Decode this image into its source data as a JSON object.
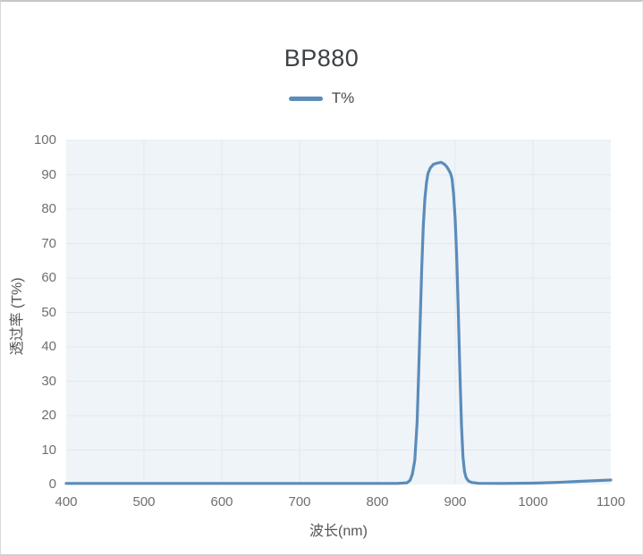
{
  "chart_data": {
    "type": "line",
    "title": "BP880",
    "xlabel": "波长(nm)",
    "ylabel": "透过率 (T%)",
    "xlim": [
      400,
      1100
    ],
    "ylim": [
      0,
      100
    ],
    "x_ticks": [
      400,
      500,
      600,
      700,
      800,
      900,
      1000,
      1100
    ],
    "y_ticks": [
      0,
      10,
      20,
      30,
      40,
      50,
      60,
      70,
      80,
      90,
      100
    ],
    "grid": true,
    "legend_position": "top-center",
    "series": [
      {
        "name": "T%",
        "color": "#5b8cba",
        "points": [
          [
            400,
            0.3
          ],
          [
            450,
            0.3
          ],
          [
            500,
            0.3
          ],
          [
            550,
            0.3
          ],
          [
            600,
            0.3
          ],
          [
            650,
            0.3
          ],
          [
            700,
            0.3
          ],
          [
            750,
            0.3
          ],
          [
            800,
            0.3
          ],
          [
            825,
            0.3
          ],
          [
            838,
            0.5
          ],
          [
            842,
            1.2
          ],
          [
            845,
            3
          ],
          [
            848,
            7
          ],
          [
            851,
            18
          ],
          [
            853,
            32
          ],
          [
            855,
            48
          ],
          [
            857,
            63
          ],
          [
            859,
            75
          ],
          [
            861,
            83
          ],
          [
            863,
            87.5
          ],
          [
            865,
            90.3
          ],
          [
            868,
            92
          ],
          [
            872,
            93
          ],
          [
            877,
            93.4
          ],
          [
            882,
            93.6
          ],
          [
            886,
            93.1
          ],
          [
            889,
            92.4
          ],
          [
            892,
            91.3
          ],
          [
            894,
            90.4
          ],
          [
            896,
            88.8
          ],
          [
            898,
            84
          ],
          [
            900,
            77
          ],
          [
            902,
            66
          ],
          [
            904,
            50
          ],
          [
            906,
            33
          ],
          [
            908,
            17.5
          ],
          [
            910,
            8
          ],
          [
            912,
            3.8
          ],
          [
            914,
            2
          ],
          [
            917,
            1
          ],
          [
            921,
            0.6
          ],
          [
            930,
            0.35
          ],
          [
            960,
            0.3
          ],
          [
            1000,
            0.4
          ],
          [
            1030,
            0.6
          ],
          [
            1060,
            0.9
          ],
          [
            1100,
            1.3
          ]
        ]
      }
    ]
  },
  "colors": {
    "accent": "#5b8cba",
    "plot_bg": "#eff4f8",
    "grid_line": "#e2e8ed",
    "tick_text": "#6f6f6f",
    "title_text": "#3e4246",
    "legend_text": "#464a4e",
    "axis_label_text": "#555555"
  }
}
